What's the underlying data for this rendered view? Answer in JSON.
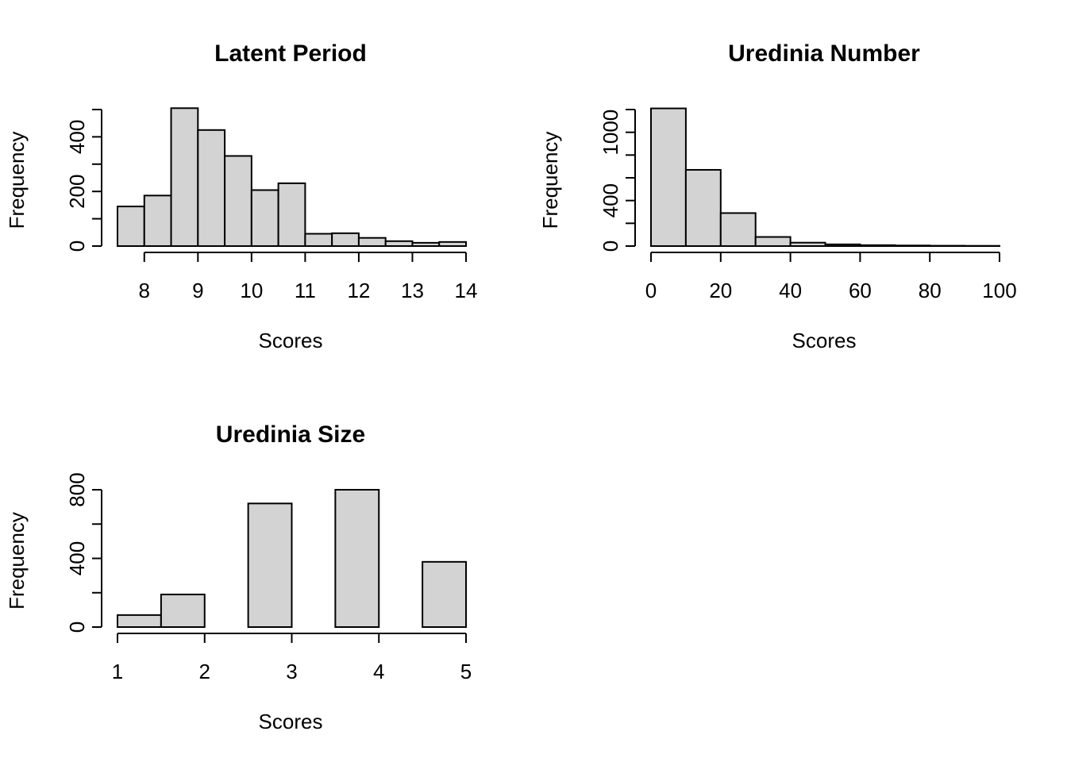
{
  "chart_data": [
    {
      "type": "bar",
      "title": "Latent Period",
      "xlabel": "Scores",
      "ylabel": "Frequency",
      "bin_edges": [
        7.5,
        8,
        8.5,
        9,
        9.5,
        10,
        10.5,
        11,
        11.5,
        12,
        12.5,
        13,
        13.5,
        14
      ],
      "values": [
        145,
        185,
        505,
        425,
        330,
        205,
        230,
        45,
        47,
        30,
        18,
        12,
        15
      ],
      "xlim": [
        7.5,
        14
      ],
      "ylim": [
        0,
        500
      ],
      "xticks": [
        "8",
        "9",
        "10",
        "11",
        "12",
        "13",
        "14"
      ],
      "xtick_values": [
        8,
        9,
        10,
        11,
        12,
        13,
        14
      ],
      "yticks": [
        "0",
        "200",
        "400"
      ],
      "ytick_values": [
        0,
        200,
        400
      ],
      "yaxis_max": 500,
      "ytick_step_marks": [
        0,
        100,
        200,
        300,
        400,
        500
      ],
      "grid": false
    },
    {
      "type": "bar",
      "title": "Uredinia Number",
      "xlabel": "Scores",
      "ylabel": "Frequency",
      "bin_edges": [
        0,
        10,
        20,
        30,
        40,
        50,
        60,
        70,
        80,
        90,
        100
      ],
      "values": [
        1210,
        670,
        290,
        80,
        30,
        15,
        8,
        5,
        3,
        2
      ],
      "xlim": [
        0,
        100
      ],
      "ylim": [
        0,
        1200
      ],
      "xticks": [
        "0",
        "20",
        "40",
        "60",
        "80",
        "100"
      ],
      "xtick_values": [
        0,
        20,
        40,
        60,
        80,
        100
      ],
      "yticks": [
        "0",
        "400",
        "1000"
      ],
      "ytick_values": [
        0,
        400,
        1000
      ],
      "yaxis_max": 1200,
      "ytick_step_marks": [
        0,
        200,
        400,
        600,
        800,
        1000,
        1200
      ],
      "grid": false
    },
    {
      "type": "bar",
      "title": "Uredinia Size",
      "xlabel": "Scores",
      "ylabel": "Frequency",
      "bin_edges": [
        1,
        1.5,
        2,
        2.5,
        3,
        3.5,
        4,
        4.5,
        5
      ],
      "values": [
        70,
        190,
        0,
        720,
        0,
        800,
        0,
        380
      ],
      "xlim": [
        1,
        5
      ],
      "ylim": [
        0,
        800
      ],
      "xticks": [
        "1",
        "2",
        "3",
        "4",
        "5"
      ],
      "xtick_values": [
        1,
        2,
        3,
        4,
        5
      ],
      "yticks": [
        "0",
        "400",
        "800"
      ],
      "ytick_values": [
        0,
        400,
        800
      ],
      "yaxis_max": 800,
      "ytick_step_marks": [
        0,
        200,
        400,
        600,
        800
      ],
      "grid": false
    }
  ]
}
